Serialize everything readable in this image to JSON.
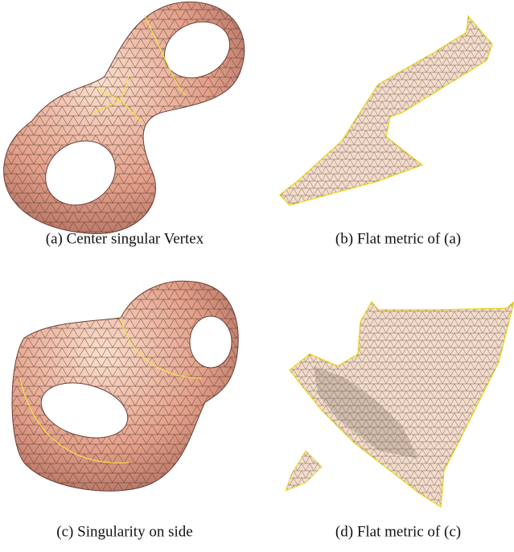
{
  "figures": [
    {
      "caption": "(a) Center singular Vertex"
    },
    {
      "caption": "(b) Flat metric of (a)"
    },
    {
      "caption": "(c) Singularity on side"
    },
    {
      "caption": "(d) Flat metric of (c)"
    }
  ]
}
